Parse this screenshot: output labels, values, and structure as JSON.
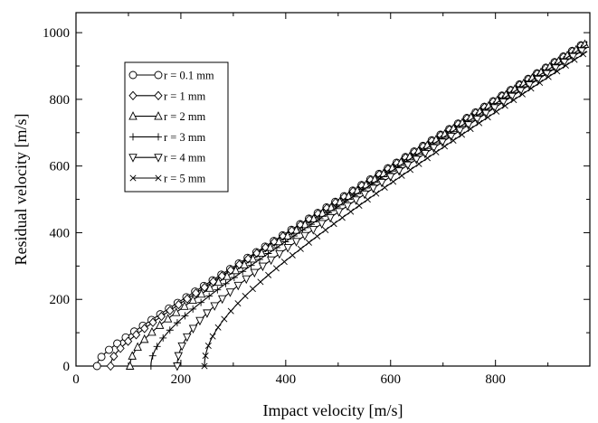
{
  "chart_data": {
    "type": "line",
    "title": "",
    "xlabel": "Impact velocity [m/s]",
    "ylabel": "Residual velocity [m/s]",
    "xlim": [
      0,
      980
    ],
    "ylim": [
      0,
      1060
    ],
    "xticks": [
      0,
      200,
      400,
      600,
      800
    ],
    "yticks": [
      0,
      200,
      400,
      600,
      800,
      1000
    ],
    "grid": false,
    "legend_position": "top-left",
    "series": [
      {
        "name": "r = 0.1 mm",
        "marker": "circle",
        "ballistic_limit": 40,
        "x_max": 975
      },
      {
        "name": "r = 1 mm",
        "marker": "diamond",
        "ballistic_limit": 66,
        "x_max": 975
      },
      {
        "name": "r = 2 mm",
        "marker": "triangle-up",
        "ballistic_limit": 103,
        "x_max": 975
      },
      {
        "name": "r = 3 mm",
        "marker": "plus",
        "ballistic_limit": 143,
        "x_max": 975
      },
      {
        "name": "r = 4 mm",
        "marker": "triangle-down",
        "ballistic_limit": 193,
        "x_max": 975
      },
      {
        "name": "r = 5 mm",
        "marker": "cross",
        "ballistic_limit": 245,
        "x_max": 975
      }
    ]
  }
}
